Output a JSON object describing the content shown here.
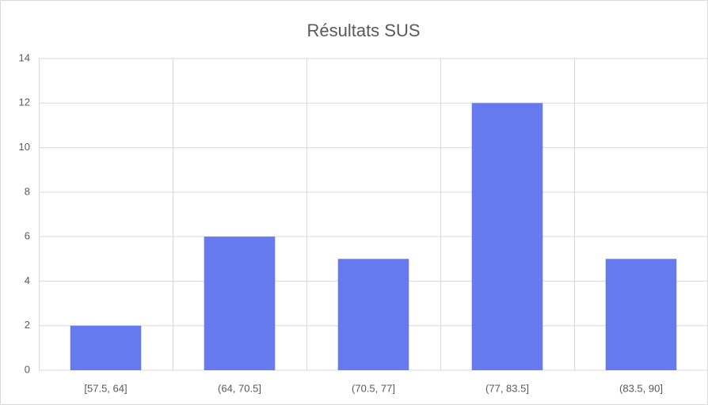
{
  "chart_data": {
    "type": "bar",
    "title": "Résultats SUS",
    "categories": [
      "[57.5, 64]",
      "(64, 70.5]",
      "(70.5, 77]",
      "(77, 83.5]",
      "(83.5, 90]"
    ],
    "values": [
      2,
      6,
      5,
      12,
      5
    ],
    "color": "#6779ee",
    "ylim": [
      0,
      14
    ],
    "yticks": [
      0,
      2,
      4,
      6,
      8,
      10,
      12,
      14
    ],
    "grid": true
  }
}
